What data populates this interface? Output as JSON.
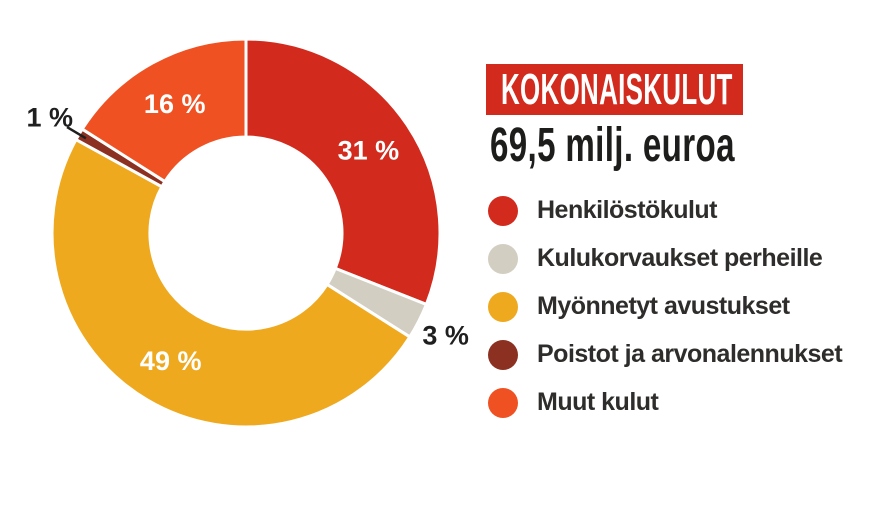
{
  "chart_data": {
    "type": "pie",
    "subtype": "donut",
    "title": "KOKONAISKULUT",
    "subtitle": "69,5 milj. euroa",
    "unit": "%",
    "start_angle_deg": 0,
    "direction": "clockwise",
    "legend_position": "right",
    "categories": [
      "Henkilöstökulut",
      "Kulukorvaukset perheille",
      "Myönnetyt avustukset",
      "Poistot ja arvonalennukset",
      "Muut kulut"
    ],
    "values": [
      31,
      3,
      49,
      1,
      16
    ],
    "slice_labels": [
      "31 %",
      "3 %",
      "49 %",
      "1 %",
      "16 %"
    ],
    "colors": [
      "#d22b1e",
      "#d3cec2",
      "#efa91f",
      "#8c3121",
      "#f05123"
    ]
  },
  "styles": {
    "background": "#ffffff",
    "badge_background": "#d22b1e",
    "badge_text_color": "#ffffff",
    "subtitle_color": "#1d1d1b",
    "legend_text_color": "#2e2d2b",
    "inside_label_color": "#ffffff",
    "outside_label_color": "#1f1f1f",
    "slice_divider_color": "#ffffff"
  }
}
